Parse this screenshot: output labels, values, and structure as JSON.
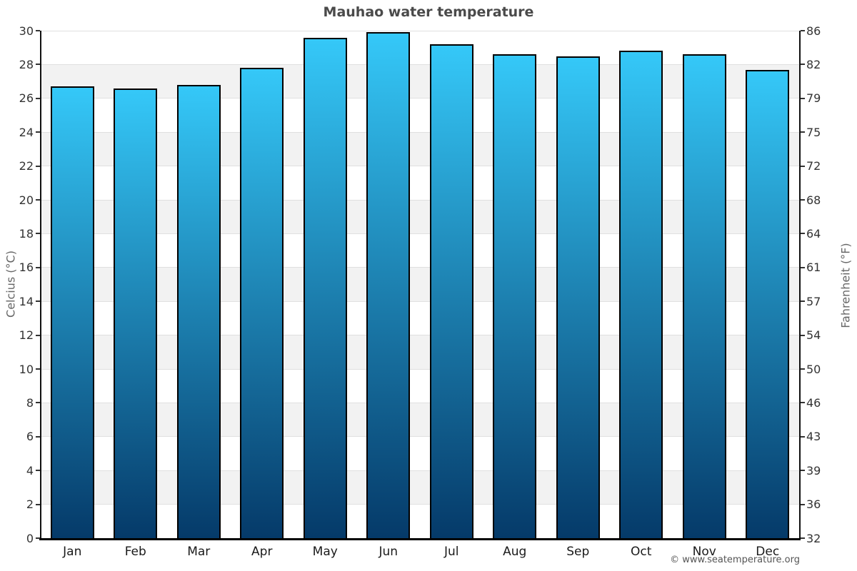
{
  "chart_data": {
    "type": "bar",
    "title": "Mauhao water temperature",
    "categories": [
      "Jan",
      "Feb",
      "Mar",
      "Apr",
      "May",
      "Jun",
      "Jul",
      "Aug",
      "Sep",
      "Oct",
      "Nov",
      "Dec"
    ],
    "values": [
      26.7,
      26.6,
      26.8,
      27.8,
      29.6,
      29.9,
      29.2,
      28.6,
      28.5,
      28.8,
      28.6,
      27.7
    ],
    "value_unit": "°C",
    "ylim": [
      0,
      30
    ],
    "grid": "horizontal",
    "legend": "none",
    "y_axis_left": {
      "label": "Celcius (°C)",
      "ticks": [
        30,
        28,
        26,
        24,
        22,
        20,
        18,
        16,
        14,
        12,
        10,
        8,
        6,
        4,
        2,
        0
      ]
    },
    "y_axis_right": {
      "label": "Fahrenheit (°F)",
      "ticks": [
        "86",
        "82",
        "79",
        "75",
        "72",
        "68",
        "64",
        "61",
        "57",
        "54",
        "50",
        "46",
        "43",
        "39",
        "36",
        "32"
      ]
    },
    "colors": {
      "bar_top": "#35c8f8",
      "bar_bottom": "#053a69",
      "bar_border": "#000000",
      "stripe": "#f2f2f2",
      "gridline": "#e0e0e0",
      "axis": "#111111",
      "baseline": "#000000"
    }
  },
  "footer": {
    "copyright": "© www.seatemperature.org"
  }
}
